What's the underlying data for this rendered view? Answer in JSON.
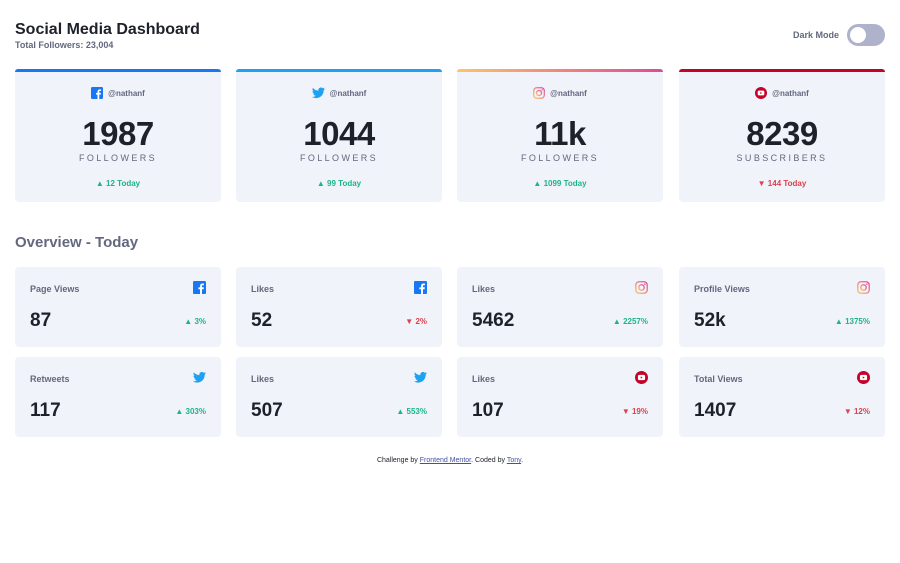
{
  "header": {
    "title": "Social Media Dashboard",
    "total_followers": "Total Followers: 23,004",
    "dark_mode_label": "Dark Mode"
  },
  "colors": {
    "facebook": "#1877f2",
    "twitter": "#1da1f2",
    "youtube": "#c4032b",
    "up": "#1db489",
    "down": "#dc414c"
  },
  "big_cards": [
    {
      "platform": "facebook",
      "icon": "facebook-icon",
      "handle": "@nathanf",
      "count": "1987",
      "label": "FOLLOWERS",
      "today": "12 Today",
      "trend": "up"
    },
    {
      "platform": "twitter",
      "icon": "twitter-icon",
      "handle": "@nathanf",
      "count": "1044",
      "label": "FOLLOWERS",
      "today": "99 Today",
      "trend": "up"
    },
    {
      "platform": "instagram",
      "icon": "instagram-icon",
      "handle": "@nathanf",
      "count": "11k",
      "label": "FOLLOWERS",
      "today": "1099 Today",
      "trend": "up"
    },
    {
      "platform": "youtube",
      "icon": "youtube-icon",
      "handle": "@nathanf",
      "count": "8239",
      "label": "SUBSCRIBERS",
      "today": "144 Today",
      "trend": "down"
    }
  ],
  "overview": {
    "title": "Overview - Today",
    "cards": [
      {
        "label": "Page Views",
        "icon": "facebook-icon",
        "value": "87",
        "percent": "3%",
        "trend": "up"
      },
      {
        "label": "Likes",
        "icon": "facebook-icon",
        "value": "52",
        "percent": "2%",
        "trend": "down"
      },
      {
        "label": "Likes",
        "icon": "instagram-icon",
        "value": "5462",
        "percent": "2257%",
        "trend": "up"
      },
      {
        "label": "Profile Views",
        "icon": "instagram-icon",
        "value": "52k",
        "percent": "1375%",
        "trend": "up"
      },
      {
        "label": "Retweets",
        "icon": "twitter-icon",
        "value": "117",
        "percent": "303%",
        "trend": "up"
      },
      {
        "label": "Likes",
        "icon": "twitter-icon",
        "value": "507",
        "percent": "553%",
        "trend": "up"
      },
      {
        "label": "Likes",
        "icon": "youtube-icon",
        "value": "107",
        "percent": "19%",
        "trend": "down"
      },
      {
        "label": "Total Views",
        "icon": "youtube-icon",
        "value": "1407",
        "percent": "12%",
        "trend": "down"
      }
    ]
  },
  "footer": {
    "prefix": "Challenge by ",
    "link1": "Frontend Mentor",
    "middle": ". Coded by ",
    "link2": "Tony",
    "suffix": "."
  }
}
